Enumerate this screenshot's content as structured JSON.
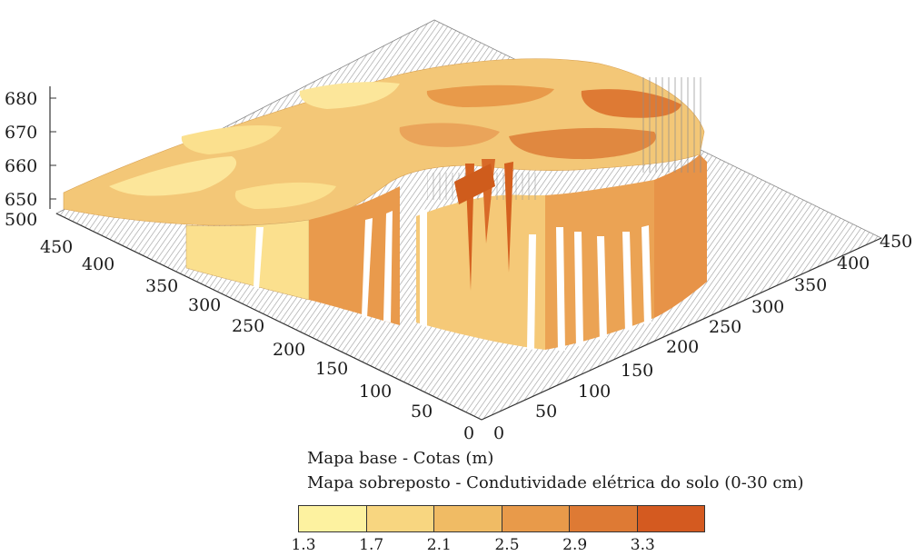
{
  "chart_data": {
    "type": "surface-3d",
    "base_map_label": "Mapa base - Cotas (m)",
    "overlay_label": "Mapa sobreposto - Condutividade elétrica do solo (0-30 cm)",
    "z_axis": {
      "ticks": [
        "680",
        "670",
        "660",
        "650"
      ],
      "range": [
        650,
        680
      ]
    },
    "left_axis": {
      "ticks": [
        "500",
        "450",
        "400",
        "350",
        "300",
        "250",
        "200",
        "150",
        "100",
        "50",
        "0"
      ],
      "range": [
        0,
        500
      ]
    },
    "right_axis": {
      "ticks": [
        "0",
        "50",
        "100",
        "150",
        "200",
        "250",
        "300",
        "350",
        "400",
        "450"
      ],
      "range": [
        0,
        450
      ]
    },
    "legend": {
      "labels": [
        "1.3",
        "1.7",
        "2.1",
        "2.5",
        "2.9",
        "3.3"
      ],
      "colors": [
        "#fdf2a0",
        "#f8d680",
        "#f0bb64",
        "#e89a4a",
        "#de7a34",
        "#d45a20"
      ]
    }
  }
}
